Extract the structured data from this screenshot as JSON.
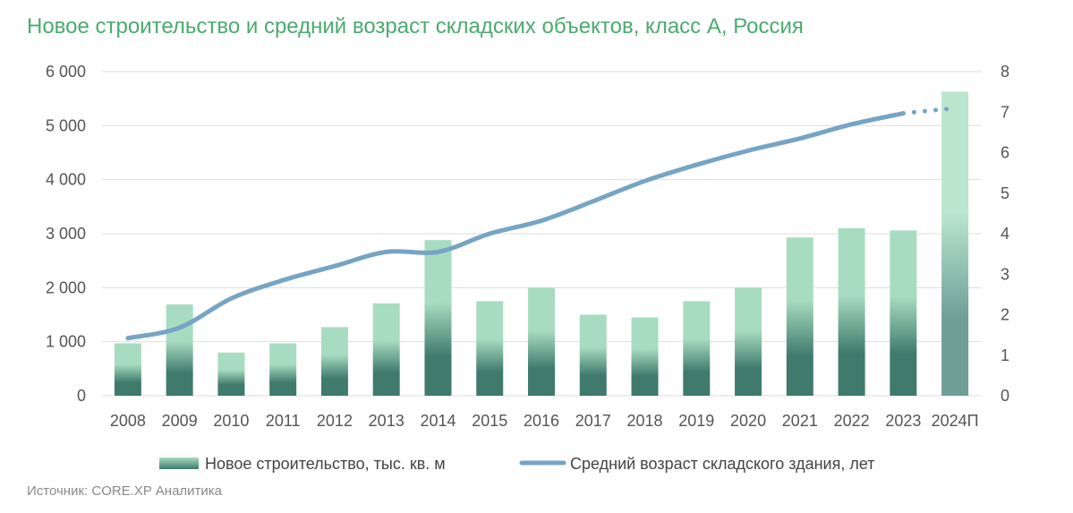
{
  "title": "Новое строительство и средний возраст складских объектов, класс А, Россия",
  "source": "Источник: CORE.XP Аналитика",
  "chart_data": {
    "type": "bar",
    "categories": [
      "2008",
      "2009",
      "2010",
      "2011",
      "2012",
      "2013",
      "2014",
      "2015",
      "2016",
      "2017",
      "2018",
      "2019",
      "2020",
      "2021",
      "2022",
      "2023",
      "2024П"
    ],
    "series": [
      {
        "name": "Новое строительство, тыс. кв. м",
        "type": "bar",
        "axis": "left",
        "values": [
          970,
          1690,
          800,
          970,
          1270,
          1710,
          2880,
          1750,
          2000,
          1500,
          1450,
          1750,
          2000,
          2930,
          3100,
          3060,
          5630
        ],
        "forecast_from": "2024П"
      },
      {
        "name": "Средний возраст складского здания, лет",
        "type": "line",
        "axis": "right",
        "values": [
          1.42,
          1.68,
          2.4,
          2.85,
          3.2,
          3.55,
          3.55,
          4.0,
          4.32,
          4.8,
          5.3,
          5.7,
          6.05,
          6.35,
          6.7,
          6.97,
          7.1
        ],
        "forecast_from": "2024П"
      }
    ],
    "y_left": {
      "min": 0,
      "max": 6000,
      "ticks": [
        "0",
        "1 000",
        "2 000",
        "3 000",
        "4 000",
        "5 000",
        "6 000"
      ]
    },
    "y_right": {
      "min": 0,
      "max": 8,
      "ticks": [
        "0",
        "1",
        "2",
        "3",
        "4",
        "5",
        "6",
        "7",
        "8"
      ]
    },
    "grid": "horizontal",
    "legend": "bottom",
    "colors": {
      "bar_light": "#a8dcc0",
      "bar_dark": "#3f7a6d",
      "forecast_light": "#b9e6cd",
      "forecast_dark": "#6f9e97",
      "line": "#76a4c4"
    }
  }
}
